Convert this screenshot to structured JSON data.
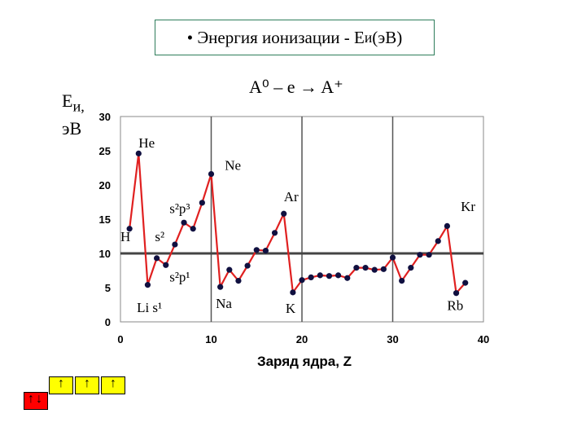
{
  "title": {
    "prefix": "• Энергия ионизации - E",
    "sub": "и",
    "suffix": " (эВ)"
  },
  "equation": "A⁰ – e → A⁺",
  "ylabel": {
    "line1": "E",
    "line1_sub": "и,",
    "line2": "эВ"
  },
  "chart_data": {
    "type": "line",
    "xlabel": "Заряд ядра, Z",
    "xlim": [
      0,
      40
    ],
    "ylim": [
      0,
      30
    ],
    "xticks": [
      0,
      10,
      20,
      30,
      40
    ],
    "yticks": [
      0,
      5,
      10,
      15,
      20,
      25,
      30
    ],
    "grid": true,
    "line_color": "#e02020",
    "marker_color": "#101040",
    "series": [
      {
        "x": [
          1,
          2,
          3,
          4,
          5,
          6,
          7,
          8,
          9,
          10,
          11,
          12,
          13,
          14,
          15,
          16,
          17,
          18,
          19,
          20,
          21,
          22,
          23,
          24,
          25,
          26,
          27,
          28,
          29,
          30,
          31,
          32,
          33,
          34,
          35,
          36,
          37,
          38
        ],
        "values": [
          13.6,
          24.6,
          5.4,
          9.3,
          8.3,
          11.3,
          14.5,
          13.6,
          17.4,
          21.6,
          5.1,
          7.6,
          6.0,
          8.2,
          10.5,
          10.4,
          13.0,
          15.8,
          4.3,
          6.1,
          6.5,
          6.8,
          6.7,
          6.8,
          6.4,
          7.9,
          7.9,
          7.6,
          7.7,
          9.4,
          6.0,
          7.9,
          9.8,
          9.8,
          11.8,
          14.0,
          4.2,
          5.7
        ]
      }
    ],
    "annotations": [
      {
        "text": "He",
        "x": 2.0,
        "y": 25.5
      },
      {
        "text": "Ne",
        "x": 11.5,
        "y": 22.2
      },
      {
        "text": "Ar",
        "x": 18.0,
        "y": 17.6
      },
      {
        "text": "Kr",
        "x": 37.5,
        "y": 16.2
      },
      {
        "text": "H",
        "x": 0.0,
        "y": 11.8
      },
      {
        "text": "s²p³",
        "x": 5.4,
        "y": 15.9
      },
      {
        "text": "s²",
        "x": 3.8,
        "y": 11.8
      },
      {
        "text": "s²p¹",
        "x": 5.4,
        "y": 5.9
      },
      {
        "text": "Li s¹",
        "x": 1.8,
        "y": 1.4
      },
      {
        "text": "Na",
        "x": 10.5,
        "y": 2.0
      },
      {
        "text": "K",
        "x": 18.2,
        "y": 1.3
      },
      {
        "text": "Rb",
        "x": 36.0,
        "y": 1.7
      }
    ]
  },
  "orbital_boxes": {
    "p_box_color": "#ffff00",
    "s_box_color": "#ff0000",
    "p_arrows": [
      "↑",
      "↑",
      "↑"
    ],
    "s_arrows": [
      "↑↓"
    ]
  }
}
